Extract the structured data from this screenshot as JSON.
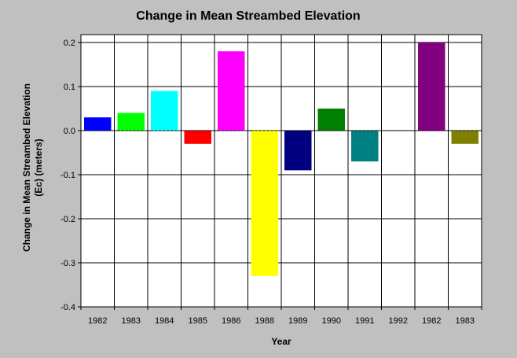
{
  "chart_data": {
    "type": "bar",
    "title": "Change in Mean Streambed Elevation",
    "xlabel": "Year",
    "ylabel_lines": [
      "Change in Mean Streambed Elevation",
      "(Ec) (meters)"
    ],
    "categories": [
      "1982",
      "1983",
      "1984",
      "1985",
      "1986",
      "1988",
      "1989",
      "1990",
      "1991",
      "1992",
      "1982",
      "1983"
    ],
    "values": [
      0.03,
      0.04,
      0.09,
      -0.03,
      0.18,
      -0.33,
      -0.09,
      0.05,
      -0.07,
      0,
      0.2,
      -0.03
    ],
    "colors": [
      "#0000ff",
      "#00ff00",
      "#00ffff",
      "#ff0000",
      "#ff00ff",
      "#ffff00",
      "#000080",
      "#008000",
      "#008080",
      "#808080",
      "#800080",
      "#808000"
    ],
    "ylim": [
      -0.4,
      0.2
    ],
    "yticks": [
      0.2,
      0.1,
      0.0,
      -0.1,
      -0.2,
      -0.3,
      -0.4
    ],
    "ytick_labels": [
      "0.2",
      "0.1",
      "0.0",
      "-0.1",
      "-0.2",
      "-0.3",
      "-0.4"
    ],
    "grid": true,
    "legend": "none",
    "plot_background": "#ffffff",
    "page_background": "#c0c0c0"
  }
}
